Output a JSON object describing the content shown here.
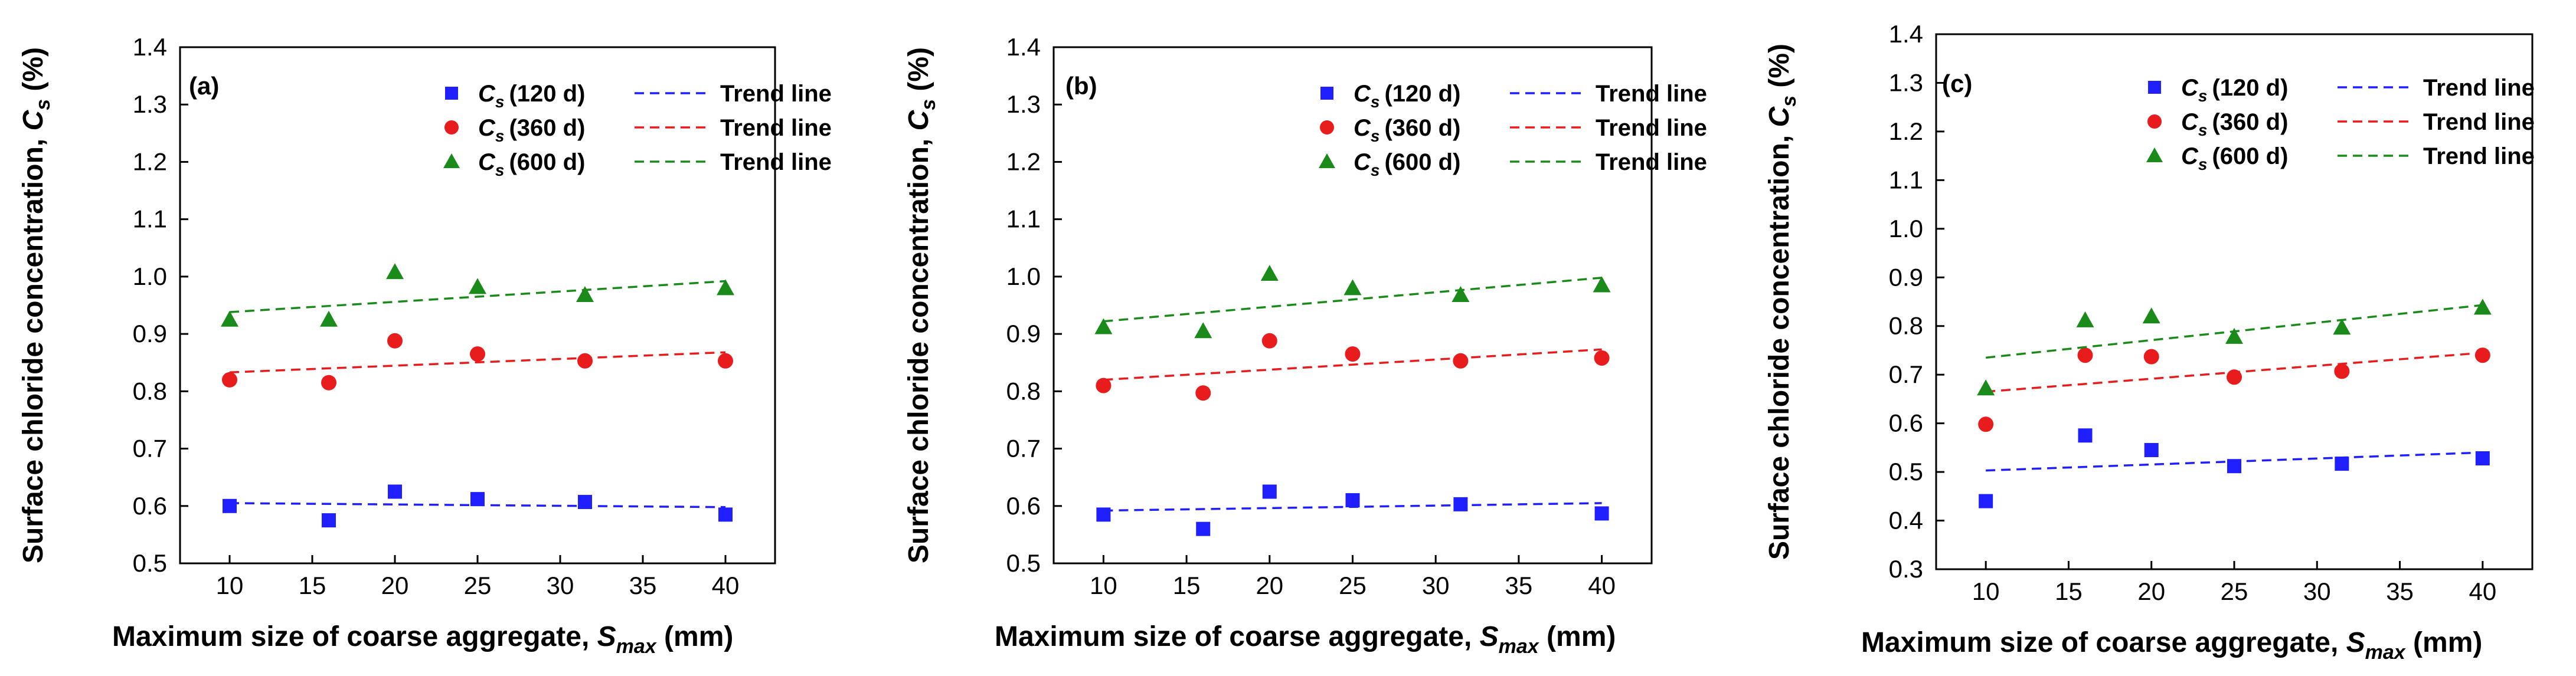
{
  "x_ticks": [
    10,
    15,
    20,
    25,
    30,
    35,
    40
  ],
  "y_ticks_ab": [
    0.5,
    0.6,
    0.7,
    0.8,
    0.9,
    1.0,
    1.1,
    1.2,
    1.3,
    1.4
  ],
  "y_ticks_c": [
    0.3,
    0.4,
    0.5,
    0.6,
    0.7,
    0.8,
    0.9,
    1.0,
    1.1,
    1.2,
    1.3,
    1.4
  ],
  "legend": {
    "cs_symbol": "C",
    "cs_sub": "s",
    "trend_label": "Trend line",
    "ages": [
      "(120 d)",
      "(360 d)",
      "(600 d)"
    ]
  },
  "colors": {
    "s120": "#1f1fff",
    "s360": "#e81c1c",
    "s600": "#1a8a1a"
  },
  "axis_titles": {
    "x_main": "Maximum size of coarse aggregate, ",
    "x_sym": "S",
    "x_sub": "max",
    "x_unit": " (mm)",
    "y_main": "Surface chloride concentration, ",
    "y_sym": "C",
    "y_sub": "s",
    "y_unit": " (%)"
  },
  "chart_data": [
    {
      "type": "scatter",
      "panel": "(a)",
      "xlabel": "Maximum size of coarse aggregate, Smax (mm)",
      "ylabel": "Surface chloride concentration, Cs (%)",
      "xlim": [
        7,
        43
      ],
      "ylim": [
        0.5,
        1.4
      ],
      "x": [
        10,
        16,
        20,
        25,
        31.5,
        40
      ],
      "series": [
        {
          "name": "Cs (120 d)",
          "marker": "square",
          "values": [
            0.6,
            0.575,
            0.625,
            0.612,
            0.607,
            0.585
          ],
          "trend": [
            0.605,
            0.598
          ]
        },
        {
          "name": "Cs (360 d)",
          "marker": "circle",
          "values": [
            0.82,
            0.815,
            0.888,
            0.865,
            0.853,
            0.853
          ],
          "trend": [
            0.833,
            0.868
          ]
        },
        {
          "name": "Cs (600 d)",
          "marker": "triangle",
          "values": [
            0.925,
            0.925,
            1.008,
            0.982,
            0.968,
            0.98
          ],
          "trend": [
            0.938,
            0.992
          ]
        }
      ]
    },
    {
      "type": "scatter",
      "panel": "(b)",
      "xlabel": "Maximum size of coarse aggregate, Smax (mm)",
      "ylabel": "Surface chloride concentration, Cs (%)",
      "xlim": [
        7,
        43
      ],
      "ylim": [
        0.5,
        1.4
      ],
      "x": [
        10,
        16,
        20,
        25,
        31.5,
        40
      ],
      "series": [
        {
          "name": "Cs (120 d)",
          "marker": "square",
          "values": [
            0.585,
            0.56,
            0.625,
            0.61,
            0.603,
            0.587
          ],
          "trend": [
            0.592,
            0.605
          ]
        },
        {
          "name": "Cs (360 d)",
          "marker": "circle",
          "values": [
            0.81,
            0.797,
            0.888,
            0.865,
            0.853,
            0.858
          ],
          "trend": [
            0.82,
            0.873
          ]
        },
        {
          "name": "Cs (600 d)",
          "marker": "triangle",
          "values": [
            0.912,
            0.905,
            1.005,
            0.98,
            0.968,
            0.985
          ],
          "trend": [
            0.922,
            0.998
          ]
        }
      ]
    },
    {
      "type": "scatter",
      "panel": "(c)",
      "xlabel": "Maximum size of coarse aggregate, Smax (mm)",
      "ylabel": "Surface chloride concentration, Cs (%)",
      "xlim": [
        7,
        43
      ],
      "ylim": [
        0.3,
        1.4
      ],
      "x": [
        10,
        16,
        20,
        25,
        31.5,
        40
      ],
      "series": [
        {
          "name": "Cs (120 d)",
          "marker": "square",
          "values": [
            0.44,
            0.575,
            0.545,
            0.512,
            0.517,
            0.528
          ],
          "trend": [
            0.503,
            0.54
          ]
        },
        {
          "name": "Cs (360 d)",
          "marker": "circle",
          "values": [
            0.598,
            0.74,
            0.737,
            0.695,
            0.707,
            0.74
          ],
          "trend": [
            0.665,
            0.745
          ]
        },
        {
          "name": "Cs (600 d)",
          "marker": "triangle",
          "values": [
            0.672,
            0.812,
            0.82,
            0.778,
            0.797,
            0.838
          ],
          "trend": [
            0.735,
            0.843
          ]
        }
      ]
    }
  ]
}
